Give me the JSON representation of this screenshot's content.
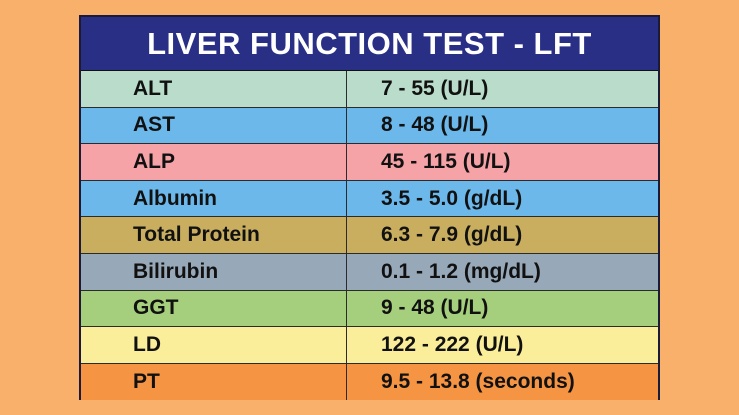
{
  "title": "LIVER FUNCTION TEST - LFT",
  "rows": [
    {
      "name": "ALT",
      "range": "7 - 55 (U/L)",
      "color": "#B9DCCB"
    },
    {
      "name": "AST",
      "range": "8 - 48 (U/L)",
      "color": "#6CB8EA"
    },
    {
      "name": "ALP",
      "range": "45 - 115 (U/L)",
      "color": "#F6A3A8"
    },
    {
      "name": "Albumin",
      "range": "3.5 - 5.0 (g/dL)",
      "color": "#6CB8EA"
    },
    {
      "name": "Total Protein",
      "range": "6.3 - 7.9 (g/dL)",
      "color": "#C9AE60"
    },
    {
      "name": "Bilirubin",
      "range": "0.1 - 1.2 (mg/dL)",
      "color": "#97A8B8"
    },
    {
      "name": "GGT",
      "range": "9 - 48 (U/L)",
      "color": "#A6CF7D"
    },
    {
      "name": "LD",
      "range": "122 - 222 (U/L)",
      "color": "#FBEE9B"
    },
    {
      "name": "PT",
      "range": "9.5 - 13.8 (seconds)",
      "color": "#F59543"
    }
  ],
  "colors": {
    "page_background": "#F9B06A",
    "header_background": "#2A2F86",
    "header_text": "#FFFFFF"
  }
}
